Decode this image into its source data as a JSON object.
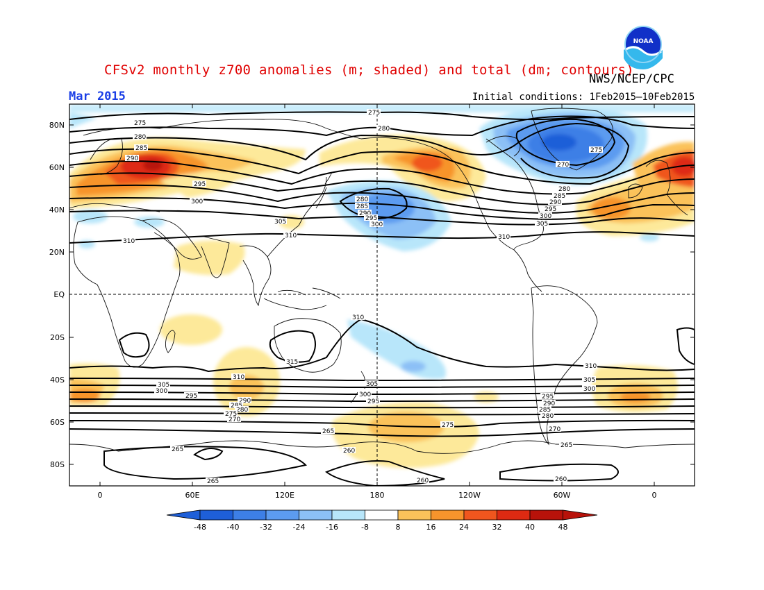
{
  "title": "CFSv2 monthly z700 anomalies (m; shaded) and total (dm; contours)",
  "agency": "NWS/NCEP/CPC",
  "logo_text": "NOAA",
  "valid_month": "Mar 2015",
  "initial_conditions": "Initial conditions: 1Feb2015–10Feb2015",
  "lat_labels": [
    "80N",
    "60N",
    "40N",
    "20N",
    "EQ",
    "20S",
    "40S",
    "60S",
    "80S"
  ],
  "lon_labels": [
    "0",
    "60E",
    "120E",
    "180",
    "120W",
    "60W",
    "0"
  ],
  "colorbar": {
    "labels": [
      "-48",
      "-40",
      "-32",
      "-24",
      "-16",
      "-8",
      "8",
      "16",
      "24",
      "32",
      "40",
      "48"
    ],
    "colors": [
      "#1e5fd8",
      "#3d7fe6",
      "#5c9bf0",
      "#8cc0f6",
      "#b8e6fa",
      "#ffffff",
      "#fde99a",
      "#fbc25a",
      "#f7942c",
      "#f0561e",
      "#de2a12",
      "#b8120a"
    ]
  },
  "contour_labels": [
    "275",
    "280",
    "285",
    "290",
    "295",
    "300",
    "305",
    "310",
    "315",
    "270",
    "265",
    "260"
  ]
}
